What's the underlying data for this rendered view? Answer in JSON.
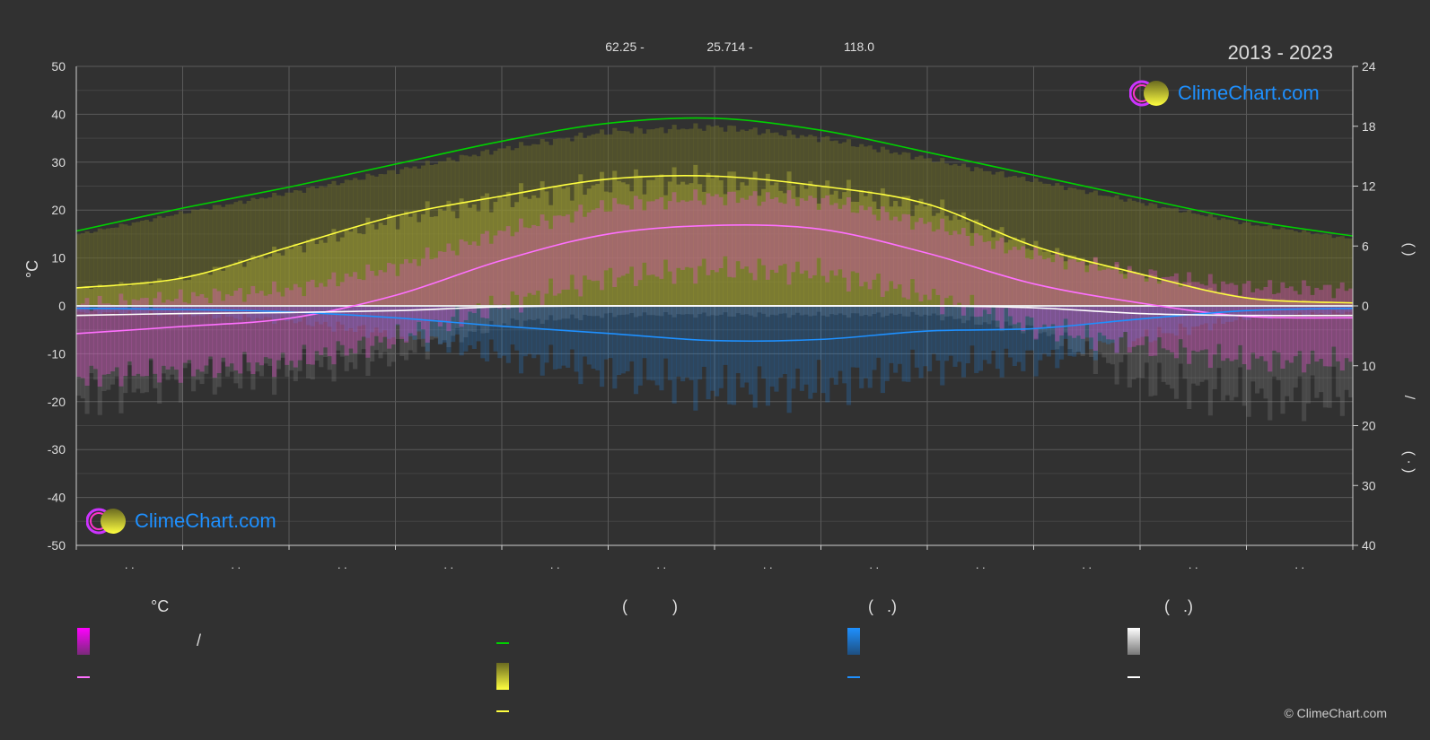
{
  "period": "2013 - 2023",
  "copyright": "© ClimeChart.com",
  "logo_text": "ClimeChart.com",
  "header_values": [
    "62.25 -",
    "25.714 -",
    "118.0"
  ],
  "legend": {
    "col1_head": "°C",
    "col1_slash": "/",
    "col2_head": "(          )",
    "col3_head": "(   .)",
    "col4_head": "(   .)"
  },
  "colors": {
    "background": "#313131",
    "daylight": "#00d000",
    "sunshine": "#ffff40",
    "temp_mean": "#ff70ff",
    "precip": "#1e90ff",
    "snow": "#e6e6e6",
    "logo": "#1e90ff"
  },
  "chart_data": {
    "type": "line",
    "left_axis": {
      "label": "°C",
      "min": -50,
      "max": 50,
      "ticks": [
        50,
        40,
        30,
        20,
        10,
        0,
        -10,
        -20,
        -30,
        -40,
        -50
      ]
    },
    "right_axis_top": {
      "min": 0,
      "max": 24,
      "ticks": [
        24,
        18,
        12,
        6,
        0
      ]
    },
    "right_axis_bottom": {
      "min": 0,
      "max": 40,
      "ticks": [
        0,
        10,
        20,
        30,
        40
      ]
    },
    "right_axis_labels": [
      "(    )",
      "/",
      "(  ·  )"
    ],
    "month_labels": [
      ". .",
      ". .",
      ". .",
      ". .",
      ". .",
      ". .",
      ". .",
      ". .",
      ". .",
      ". .",
      ". .",
      ". ."
    ],
    "series": [
      {
        "name": "",
        "unit": "hours",
        "values": [
          7.5,
          9.8,
          11.9,
          14.2,
          16.5,
          18.3,
          18.8,
          17.6,
          15.4,
          13.1,
          10.8,
          8.6,
          7.0
        ]
      },
      {
        "name": "",
        "unit": "hours",
        "values": [
          1.8,
          2.8,
          5.9,
          9.0,
          11.0,
          12.7,
          13.0,
          12.0,
          10.2,
          6.0,
          3.2,
          0.8,
          0.3
        ]
      },
      {
        "name": "",
        "unit": "°C",
        "values": [
          -5.8,
          -4.3,
          -2.6,
          2.2,
          9.5,
          15.0,
          16.8,
          16.0,
          11.0,
          4.6,
          0.6,
          -2.2,
          -2.5
        ]
      },
      {
        "name": "",
        "unit": "mm/day",
        "values": [
          0.4,
          0.6,
          1.0,
          2.0,
          3.4,
          4.6,
          5.8,
          5.6,
          4.2,
          3.8,
          2.2,
          0.8,
          0.4
        ]
      },
      {
        "name": "",
        "unit": "cm",
        "values": [
          2.0,
          1.6,
          1.4,
          1.0,
          0.2,
          0.0,
          0.0,
          0.0,
          0.0,
          0.4,
          1.6,
          2.0,
          2.0
        ]
      }
    ]
  }
}
